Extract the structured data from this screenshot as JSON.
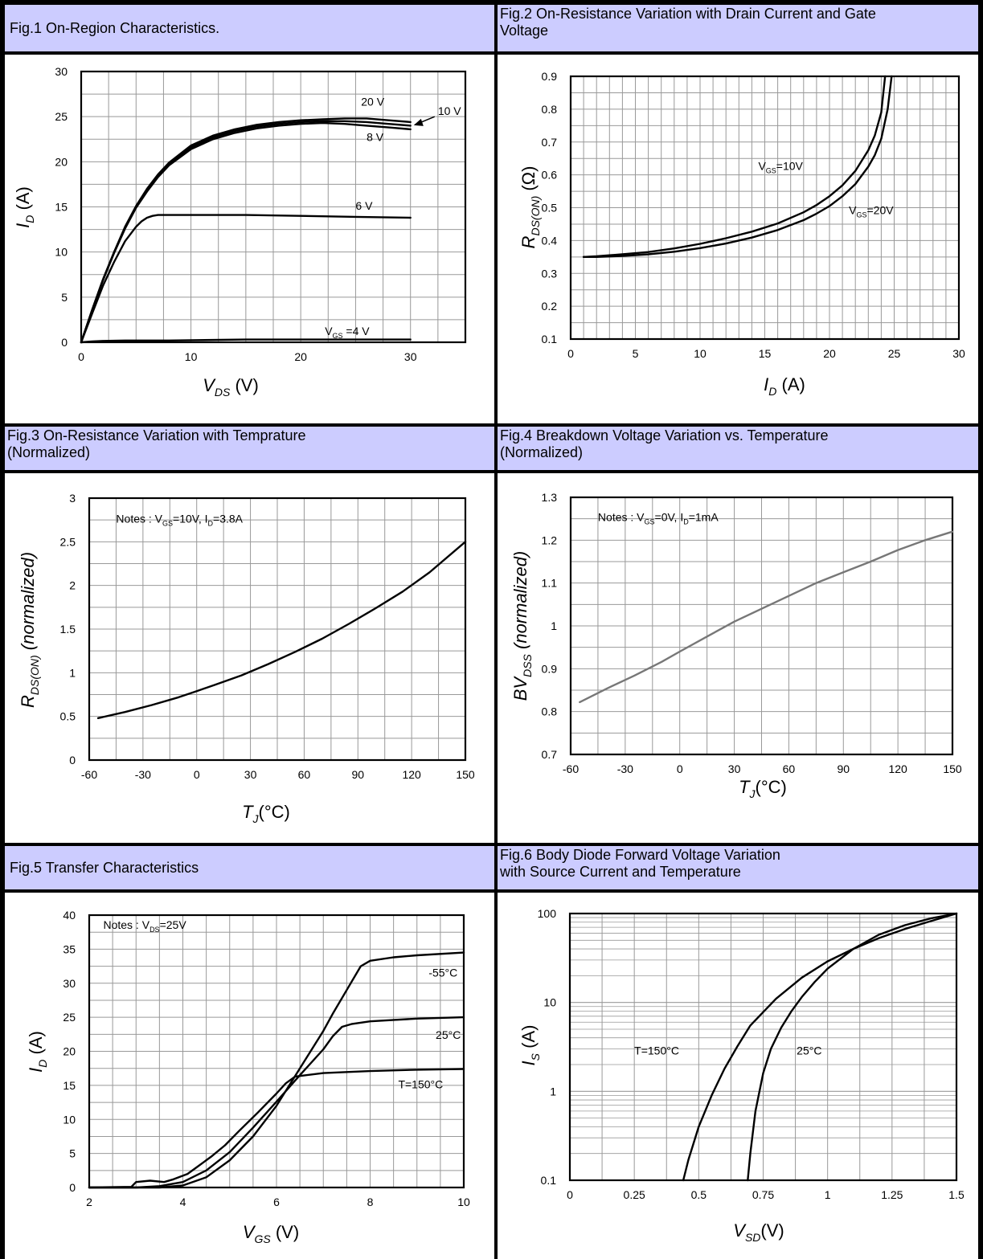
{
  "figures": [
    {
      "lines": [
        "Fig.1 On-Region Characteristics."
      ]
    },
    {
      "lines": [
        "Fig.2 On-Resistance Variation with Drain Current and Gate",
        "Voltage"
      ]
    },
    {
      "lines": [
        "Fig.3 On-Resistance Variation with Temprature",
        "(Normalized)"
      ]
    },
    {
      "lines": [
        "Fig.4 Breakdown Voltage Variation vs. Temperature",
        "(Normalized)"
      ]
    },
    {
      "lines": [
        "Fig.5 Transfer Characteristics"
      ]
    },
    {
      "lines": [
        "Fig.6 Body Diode Forward Voltage Variation",
        "with Source Current and Temperature"
      ]
    }
  ],
  "colors": {
    "header_bg": "#ccccff",
    "grid": "#999999",
    "curve": "#000000",
    "curve_fig4": "#777777"
  },
  "chart_data": [
    {
      "type": "line",
      "title": "Fig.1 On-Region Characteristics.",
      "xlabel": {
        "main": "V",
        "sub": "DS",
        "unit": " (V)"
      },
      "ylabel": {
        "main": "I",
        "sub": "D",
        "unit": " (A)"
      },
      "xlim": [
        0,
        35
      ],
      "ylim": [
        0,
        30
      ],
      "scale": "linear",
      "xticks": [
        0,
        10,
        20,
        30
      ],
      "yticks": [
        0,
        5,
        10,
        15,
        20,
        25,
        30
      ],
      "grid": {
        "x_step": 2.5,
        "y_step": 2.5
      },
      "series": [
        {
          "name": "20 V",
          "x": [
            0,
            1,
            2,
            3,
            4,
            5,
            6,
            7,
            8,
            10,
            12,
            14,
            16,
            18,
            20,
            22,
            24,
            26,
            28,
            30
          ],
          "y": [
            0,
            3.6,
            7.0,
            10.0,
            12.8,
            15.1,
            17.0,
            18.6,
            19.9,
            21.8,
            22.9,
            23.6,
            24.1,
            24.4,
            24.6,
            24.7,
            24.8,
            24.8,
            24.6,
            24.4
          ]
        },
        {
          "name": "10 V",
          "x": [
            0,
            1,
            2,
            3,
            4,
            5,
            6,
            7,
            8,
            10,
            12,
            14,
            16,
            18,
            20,
            22,
            24,
            26,
            28,
            30
          ],
          "y": [
            0,
            3.6,
            7.0,
            10.0,
            12.7,
            15.0,
            16.9,
            18.5,
            19.8,
            21.6,
            22.7,
            23.4,
            23.9,
            24.2,
            24.4,
            24.5,
            24.5,
            24.4,
            24.2,
            24.0
          ]
        },
        {
          "name": "8 V",
          "x": [
            0,
            1,
            2,
            3,
            4,
            5,
            6,
            7,
            8,
            10,
            12,
            14,
            16,
            18,
            20,
            22,
            24,
            26,
            28,
            30
          ],
          "y": [
            0,
            3.6,
            6.9,
            9.9,
            12.6,
            14.9,
            16.7,
            18.3,
            19.6,
            21.4,
            22.5,
            23.2,
            23.7,
            24.0,
            24.2,
            24.3,
            24.2,
            24.0,
            23.8,
            23.6
          ]
        },
        {
          "name": "6 V",
          "x": [
            0,
            1,
            2,
            3,
            4,
            5,
            5.5,
            6,
            6.5,
            7,
            8,
            10,
            15,
            20,
            25,
            30
          ],
          "y": [
            0,
            3.2,
            6.3,
            8.9,
            11.2,
            12.8,
            13.4,
            13.8,
            14.0,
            14.1,
            14.1,
            14.1,
            14.1,
            14.0,
            13.9,
            13.8
          ]
        },
        {
          "name": "V_GS =4 V",
          "x": [
            0,
            1,
            2,
            4,
            8,
            15,
            20,
            30
          ],
          "y": [
            0,
            0.1,
            0.15,
            0.2,
            0.2,
            0.3,
            0.3,
            0.3
          ]
        }
      ],
      "annotations": [
        {
          "text": "20 V",
          "x": 25.5,
          "y": 26.2
        },
        {
          "text": "10 V",
          "x": 32.5,
          "y": 25.2
        },
        {
          "text": "8 V",
          "x": 26.0,
          "y": 22.3
        },
        {
          "text": "6 V",
          "x": 25.0,
          "y": 14.7
        },
        {
          "text": "V",
          "sub": "GS",
          "rest": " =4 V",
          "x": 22.2,
          "y": 0.8
        }
      ]
    },
    {
      "type": "line",
      "title": "Fig.2 On-Resistance Variation with Drain Current and Gate Voltage",
      "xlabel": {
        "main": "I",
        "sub": "D",
        "unit": " (A)"
      },
      "ylabel": {
        "main": "R",
        "sub": "DS(ON)",
        "unit": " (Ω)"
      },
      "xlim": [
        0,
        30
      ],
      "ylim": [
        0.1,
        0.9
      ],
      "scale": "linear",
      "xticks": [
        0,
        5,
        10,
        15,
        20,
        25,
        30
      ],
      "yticks": [
        0.1,
        0.2,
        0.3,
        0.4,
        0.5,
        0.6,
        0.7,
        0.8,
        0.9
      ],
      "grid": {
        "x_step": 1,
        "y_step": 0.05
      },
      "series": [
        {
          "name": "V_GS=10V",
          "x": [
            1,
            2,
            4,
            6,
            8,
            10,
            12,
            14,
            16,
            18,
            19,
            20,
            21,
            22,
            23,
            23.5,
            24,
            24.3
          ],
          "y": [
            0.35,
            0.352,
            0.358,
            0.365,
            0.376,
            0.39,
            0.407,
            0.427,
            0.452,
            0.486,
            0.508,
            0.535,
            0.568,
            0.612,
            0.675,
            0.72,
            0.79,
            0.9
          ]
        },
        {
          "name": "V_GS=20V",
          "x": [
            1,
            2,
            4,
            6,
            8,
            10,
            12,
            14,
            16,
            18,
            19,
            20,
            21,
            22,
            23,
            23.5,
            24,
            24.5,
            24.8
          ],
          "y": [
            0.35,
            0.35,
            0.353,
            0.358,
            0.366,
            0.377,
            0.391,
            0.409,
            0.432,
            0.462,
            0.482,
            0.505,
            0.535,
            0.572,
            0.625,
            0.66,
            0.71,
            0.8,
            0.9
          ]
        }
      ],
      "annotations": [
        {
          "text": "V",
          "sub": "GS",
          "rest": "=10V",
          "x": 14.5,
          "y": 0.615
        },
        {
          "text": "V",
          "sub": "GS",
          "rest": "=20V",
          "x": 21.5,
          "y": 0.48
        }
      ]
    },
    {
      "type": "line",
      "title": "Fig.3 On-Resistance Variation with Temprature (Normalized)",
      "xlabel": {
        "main": "T",
        "sub": "J",
        "unit": "(°C)"
      },
      "ylabel": {
        "main": "R",
        "sub": "DS(ON)",
        "unit": " (normalized)"
      },
      "xlim": [
        -60,
        150
      ],
      "ylim": [
        0,
        3
      ],
      "scale": "linear",
      "xticks": [
        -60,
        -30,
        0,
        30,
        60,
        90,
        120,
        150
      ],
      "yticks": [
        0,
        0.5,
        1,
        1.5,
        2,
        2.5,
        3
      ],
      "grid": {
        "x_step": 15,
        "y_step": 0.25
      },
      "series": [
        {
          "name": "",
          "x": [
            -55,
            -40,
            -25,
            -10,
            0,
            10,
            25,
            40,
            55,
            70,
            85,
            100,
            115,
            130,
            150
          ],
          "y": [
            0.48,
            0.55,
            0.63,
            0.72,
            0.79,
            0.86,
            0.97,
            1.1,
            1.24,
            1.39,
            1.56,
            1.74,
            1.93,
            2.15,
            2.5
          ]
        }
      ],
      "annotations": [
        {
          "text": "Notes : V",
          "sub": "GS",
          "rest": "=10V, I",
          "sub2": "D",
          "rest2": "=3.8A",
          "x": -45,
          "y": 2.72
        }
      ]
    },
    {
      "type": "line",
      "title": "Fig.4 Breakdown Voltage Variation vs. Temperature (Normalized)",
      "xlabel": {
        "main": "T",
        "sub": "J",
        "unit": "(°C)"
      },
      "ylabel": {
        "main": "BV",
        "sub": "DSS",
        "unit": " (normalized)"
      },
      "xlim": [
        -60,
        150
      ],
      "ylim": [
        0.7,
        1.3
      ],
      "scale": "linear",
      "xticks": [
        -60,
        -30,
        0,
        30,
        60,
        90,
        120,
        150
      ],
      "yticks": [
        0.7,
        0.8,
        0.9,
        1,
        1.1,
        1.2,
        1.3
      ],
      "grid": {
        "x_step": 15,
        "y_step": 0.05
      },
      "series": [
        {
          "name": "",
          "x": [
            -55,
            -40,
            -25,
            -10,
            0,
            15,
            30,
            45,
            60,
            75,
            90,
            105,
            120,
            135,
            150
          ],
          "y": [
            0.822,
            0.854,
            0.884,
            0.916,
            0.94,
            0.975,
            1.01,
            1.04,
            1.07,
            1.1,
            1.125,
            1.15,
            1.177,
            1.2,
            1.22
          ]
        }
      ],
      "annotations": [
        {
          "text": "Notes : V",
          "sub": "GS",
          "rest": "=0V, I",
          "sub2": "D",
          "rest2": "=1mA",
          "x": -45,
          "y": 1.245
        }
      ]
    },
    {
      "type": "line",
      "title": "Fig.5 Transfer Characteristics",
      "xlabel": {
        "main": "V",
        "sub": "GS",
        "unit": " (V)"
      },
      "ylabel": {
        "main": "I",
        "sub": "D",
        "unit": " (A)"
      },
      "xlim": [
        2,
        10
      ],
      "ylim": [
        0,
        40
      ],
      "scale": "linear",
      "xticks": [
        2,
        4,
        6,
        8,
        10
      ],
      "yticks": [
        0,
        5,
        10,
        15,
        20,
        25,
        30,
        35,
        40
      ],
      "grid": {
        "x_step": 0.5,
        "y_step": 2.5
      },
      "series": [
        {
          "name": "-55°C",
          "x": [
            2,
            3,
            3.5,
            4,
            4.5,
            5,
            5.5,
            6,
            6.5,
            7,
            7.2,
            7.5,
            7.8,
            8,
            8.5,
            9,
            10
          ],
          "y": [
            0,
            0,
            0,
            0.3,
            1.5,
            4.0,
            7.5,
            12.0,
            17.5,
            23.0,
            25.5,
            29.0,
            32.5,
            33.3,
            33.8,
            34.1,
            34.5
          ]
        },
        {
          "name": "25°C",
          "x": [
            2,
            3,
            3.5,
            4,
            4.5,
            5,
            5.5,
            6,
            6.5,
            7,
            7.2,
            7.4,
            7.6,
            8,
            9,
            10
          ],
          "y": [
            0,
            0,
            0.2,
            0.8,
            2.5,
            5.2,
            8.8,
            12.6,
            16.5,
            20.3,
            22.2,
            23.6,
            24.0,
            24.4,
            24.8,
            25.0
          ]
        },
        {
          "name": "T=150°C",
          "x": [
            2,
            2.9,
            3.0,
            3.3,
            3.6,
            3.8,
            4.1,
            4.3,
            4.6,
            4.9,
            5.2,
            5.6,
            6.0,
            6.2,
            6.4,
            7.0,
            8.0,
            9.0,
            10
          ],
          "y": [
            0,
            0.1,
            0.8,
            1.0,
            0.8,
            1.2,
            2.0,
            3.0,
            4.5,
            6.2,
            8.3,
            11.0,
            13.8,
            15.3,
            16.3,
            16.8,
            17.1,
            17.3,
            17.4
          ]
        }
      ],
      "annotations": [
        {
          "text": "Notes : V",
          "sub": "DS",
          "rest": "=25V",
          "x": 2.3,
          "y": 38.0
        },
        {
          "text": "-55°C",
          "x": 9.25,
          "y": 31.0
        },
        {
          "text": "25°C",
          "x": 9.4,
          "y": 21.8
        },
        {
          "text": "T=150°C",
          "x": 8.6,
          "y": 14.6
        }
      ]
    },
    {
      "type": "line",
      "title": "Fig.6 Body Diode Forward Voltage Variation with Source Current and Temperature",
      "xlabel": {
        "main": "V",
        "sub": "SD",
        "unit": "(V)"
      },
      "ylabel": {
        "main": "I",
        "sub": "S",
        "unit": " (A)"
      },
      "xlim": [
        0,
        1.5
      ],
      "ylim": [
        0.1,
        100
      ],
      "scale": "log-y",
      "xticks": [
        0,
        0.25,
        0.5,
        0.75,
        1,
        1.25,
        1.5
      ],
      "xtick_labels": [
        "0",
        "0.25",
        "0.5",
        "0.75",
        "1",
        "1.25",
        "1.5"
      ],
      "yticks": [
        0.1,
        1,
        10,
        100
      ],
      "ytick_labels": [
        "0.1",
        "1",
        "10",
        "100"
      ],
      "grid": {
        "x_step": 0.125,
        "y_log_minor": true
      },
      "series": [
        {
          "name": "T=150°C",
          "x": [
            0.44,
            0.46,
            0.5,
            0.55,
            0.6,
            0.65,
            0.7,
            0.8,
            0.9,
            1.0,
            1.1,
            1.2,
            1.3,
            1.4,
            1.5
          ],
          "y": [
            0.1,
            0.17,
            0.4,
            0.9,
            1.8,
            3.2,
            5.5,
            11.0,
            19.0,
            29.0,
            40.0,
            53.0,
            67.0,
            82.0,
            100.0
          ]
        },
        {
          "name": "25°C",
          "x": [
            0.69,
            0.7,
            0.72,
            0.75,
            0.78,
            0.82,
            0.86,
            0.9,
            0.95,
            1.0,
            1.1,
            1.2,
            1.3,
            1.4,
            1.5
          ],
          "y": [
            0.1,
            0.2,
            0.6,
            1.6,
            3.0,
            5.2,
            8.0,
            11.5,
            17.0,
            24.0,
            40.0,
            58.0,
            74.0,
            88.0,
            100.0
          ]
        }
      ],
      "annotations": [
        {
          "text": "T=150°C",
          "x": 0.25,
          "y": 2.6
        },
        {
          "text": "25°C",
          "x": 0.88,
          "y": 2.6
        }
      ]
    }
  ]
}
